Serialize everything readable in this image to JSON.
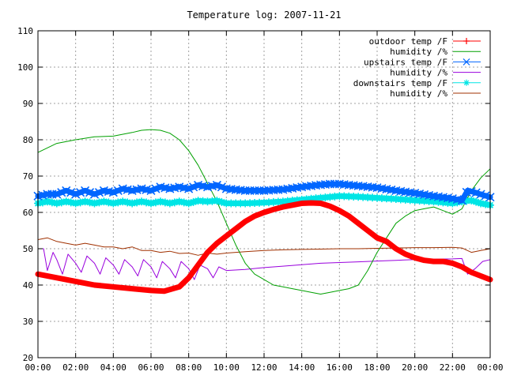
{
  "chart_data": {
    "type": "line",
    "title": "Temperature log: 2007-11-21",
    "xlabel": "",
    "ylabel": "",
    "xlim": [
      0,
      24
    ],
    "ylim": [
      20,
      110
    ],
    "x_ticks": [
      "00:00",
      "02:00",
      "04:00",
      "06:00",
      "08:00",
      "10:00",
      "12:00",
      "14:00",
      "16:00",
      "18:00",
      "20:00",
      "22:00",
      "00:00"
    ],
    "y_ticks": [
      "20",
      "30",
      "40",
      "50",
      "60",
      "70",
      "80",
      "90",
      "100",
      "110"
    ],
    "grid": true,
    "legend_position": "top-right",
    "series": [
      {
        "name": "outdoor temp /F",
        "color": "#ff0000",
        "style": "thick",
        "x": [
          0,
          1,
          2,
          3,
          4,
          5,
          6,
          6.7,
          7.5,
          8,
          8.5,
          9,
          9.5,
          10,
          10.5,
          11,
          11.5,
          12,
          12.5,
          13,
          13.5,
          14,
          14.5,
          15,
          15.5,
          16,
          16.5,
          17,
          17.5,
          18,
          18.5,
          19,
          19.5,
          20,
          20.5,
          21,
          21.5,
          22,
          22.5,
          23,
          23.5,
          24
        ],
        "values": [
          43,
          42,
          41,
          40,
          39.5,
          39,
          38.5,
          38.3,
          39.5,
          42,
          45.5,
          49,
          51.5,
          53.5,
          55.5,
          57.5,
          59,
          60,
          60.8,
          61.5,
          62,
          62.5,
          62.6,
          62.5,
          61.7,
          60.5,
          59,
          57,
          55,
          53,
          52,
          50,
          48.5,
          47.5,
          46.8,
          46.5,
          46.5,
          46,
          45,
          43.5,
          42.5,
          41.5
        ]
      },
      {
        "name": "humidity /%",
        "color": "#00a000",
        "style": "thin",
        "x": [
          0,
          1,
          2,
          3,
          4,
          5,
          5.5,
          6,
          6.5,
          7,
          7.5,
          8,
          8.5,
          9,
          9.5,
          10,
          10.5,
          11,
          11.5,
          12,
          12.5,
          13,
          13.5,
          14,
          14.5,
          15,
          15.5,
          16,
          16.5,
          17,
          17.5,
          18,
          18.5,
          19,
          19.5,
          20,
          20.5,
          21,
          21.5,
          22,
          22.5,
          23,
          23.5,
          24
        ],
        "values": [
          76.5,
          79,
          80,
          80.8,
          81,
          82,
          82.6,
          82.8,
          82.6,
          81.8,
          80,
          77,
          73,
          68,
          63,
          57,
          51,
          46,
          43,
          41.5,
          40,
          39.5,
          39,
          38.5,
          38,
          37.5,
          38,
          38.5,
          39,
          40,
          44,
          49,
          53,
          57,
          59,
          60.5,
          61,
          61.5,
          60.5,
          59.5,
          61,
          66,
          69.5,
          72
        ]
      },
      {
        "name": "upstairs temp /F",
        "color": "#0066ff",
        "style": "thick-markers",
        "x": [
          0,
          0.5,
          1,
          1.5,
          2,
          2.5,
          3,
          3.5,
          4,
          4.5,
          5,
          5.5,
          6,
          6.5,
          7,
          7.5,
          8,
          8.5,
          9,
          9.5,
          10,
          11,
          12,
          13,
          14,
          15,
          15.5,
          16,
          17,
          18,
          19,
          20,
          21,
          22,
          22.5,
          22.8,
          23.2,
          23.6,
          24
        ],
        "values": [
          64.5,
          65,
          65,
          66,
          65,
          66,
          65,
          66,
          65.5,
          66.5,
          66,
          66.5,
          66,
          67,
          66.5,
          67,
          66.5,
          67.5,
          67,
          67.5,
          66.5,
          66,
          66,
          66.3,
          67,
          67.6,
          67.8,
          67.8,
          67.3,
          66.8,
          66,
          65.3,
          64.5,
          63.8,
          63.3,
          66,
          65.5,
          64.8,
          64.2
        ]
      },
      {
        "name": "humidity /%",
        "color": "#9900dd",
        "style": "thin",
        "x": [
          0,
          0.3,
          0.5,
          0.8,
          1,
          1.3,
          1.6,
          2,
          2.3,
          2.6,
          3,
          3.3,
          3.6,
          4,
          4.3,
          4.6,
          5,
          5.3,
          5.6,
          6,
          6.3,
          6.6,
          7,
          7.3,
          7.6,
          8,
          8.3,
          8.6,
          9,
          9.3,
          9.6,
          10,
          11,
          12,
          13,
          14,
          15,
          16,
          17,
          18,
          19,
          20,
          21,
          22,
          22.5,
          22.8,
          23.2,
          23.6,
          24
        ],
        "values": [
          50,
          50,
          44,
          49,
          47,
          43,
          48.5,
          46,
          43.5,
          48,
          46,
          43,
          47.5,
          45.5,
          43,
          47,
          45,
          42.5,
          47,
          45,
          42,
          46.5,
          44.5,
          42,
          46.5,
          44.5,
          41.5,
          45.5,
          44.5,
          42,
          45,
          44,
          44.3,
          44.8,
          45.2,
          45.6,
          46,
          46.2,
          46.4,
          46.6,
          46.8,
          47,
          47.1,
          47.2,
          47.3,
          43,
          44.5,
          46.5,
          47
        ]
      },
      {
        "name": "downstairs temp /F",
        "color": "#00e5e5",
        "style": "thick-markers",
        "x": [
          0,
          0.5,
          1,
          1.5,
          2,
          2.5,
          3,
          3.5,
          4,
          4.5,
          5,
          5.5,
          6,
          6.5,
          7,
          7.5,
          8,
          8.5,
          9,
          9.5,
          10,
          11,
          12,
          13,
          14,
          15,
          16,
          17,
          18,
          19,
          20,
          21,
          22,
          22.5,
          23,
          23.5,
          24
        ],
        "values": [
          62.5,
          63,
          62.5,
          63,
          62.5,
          63,
          62.5,
          63,
          62.5,
          63,
          62.5,
          63,
          62.5,
          63,
          62.5,
          63,
          62.5,
          63.2,
          63,
          63.2,
          62.5,
          62.5,
          62.7,
          63,
          63.5,
          64,
          64.5,
          64.3,
          64,
          63.7,
          63.3,
          63,
          62.5,
          63,
          63.3,
          62.5,
          62
        ]
      },
      {
        "name": "humidity /%",
        "color": "#a03000",
        "style": "thin",
        "x": [
          0,
          0.5,
          1,
          1.5,
          2,
          2.5,
          3,
          3.5,
          4,
          4.5,
          5,
          5.5,
          6,
          6.5,
          7,
          7.5,
          8,
          8.5,
          9,
          9.5,
          10,
          11,
          12,
          13,
          14,
          15,
          16,
          17,
          18,
          19,
          20,
          21,
          22,
          22.5,
          23,
          23.5,
          24
        ],
        "values": [
          52.5,
          53,
          52,
          51.5,
          51,
          51.5,
          51,
          50.5,
          50.5,
          50,
          50.5,
          49.5,
          49.5,
          49,
          49.3,
          48.7,
          48.8,
          48.2,
          48.8,
          48.5,
          48.8,
          49.2,
          49.5,
          49.7,
          49.8,
          49.9,
          50,
          50,
          50.1,
          50.2,
          50.3,
          50.3,
          50.4,
          50.2,
          49,
          49.5,
          50
        ]
      }
    ]
  }
}
